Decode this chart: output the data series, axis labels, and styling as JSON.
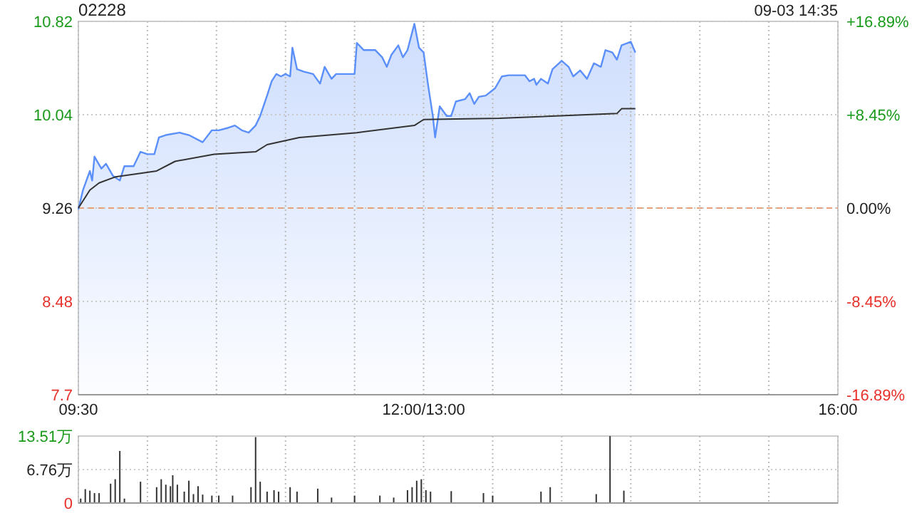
{
  "chart_data": [
    {
      "type": "area",
      "title": "02228",
      "annotations": [
        "09-03 14:35"
      ],
      "categories": [
        "09:30",
        null,
        null,
        null,
        null,
        null,
        null,
        null,
        null,
        null,
        null,
        null,
        null,
        null,
        null,
        null,
        null,
        null,
        null,
        null,
        null,
        null,
        null,
        null,
        null,
        null,
        null,
        null,
        null,
        null,
        null,
        null,
        null,
        null,
        null,
        null,
        null,
        null,
        null,
        null,
        null,
        null,
        null,
        null,
        null,
        null,
        null,
        null,
        null,
        null,
        null,
        null,
        null,
        null,
        null,
        null,
        null,
        null,
        null,
        null,
        null,
        null,
        null,
        null,
        null,
        null,
        null,
        null,
        null,
        null,
        null,
        null,
        null,
        null,
        null,
        null,
        null,
        null,
        null,
        null,
        null,
        null,
        null,
        null,
        null,
        null,
        null,
        null,
        null,
        null,
        null,
        null,
        null,
        null,
        null,
        null,
        null,
        null,
        null,
        null,
        null,
        null,
        null,
        null,
        null,
        null,
        null,
        null,
        null,
        null,
        null,
        null,
        null,
        null,
        null,
        null,
        null,
        null,
        null,
        null,
        null,
        null,
        null,
        null,
        null,
        null,
        null,
        null,
        null,
        null,
        null,
        null,
        null,
        null,
        null,
        null,
        null,
        null,
        null,
        null,
        null,
        null,
        null,
        null,
        null,
        null,
        null,
        null,
        null,
        null,
        "12:00/13:00",
        null,
        null,
        null,
        null,
        null,
        null,
        null,
        null,
        null,
        null,
        null,
        null,
        null,
        null,
        null,
        null,
        null,
        null,
        null,
        null,
        null,
        null,
        null,
        null,
        null,
        null,
        null,
        null,
        null,
        null,
        null,
        null,
        null,
        null,
        null,
        null,
        null,
        null,
        null,
        null,
        null,
        null,
        null,
        null,
        null,
        null,
        null,
        null,
        null,
        null,
        null,
        null,
        null,
        null,
        null,
        null,
        null,
        null,
        null,
        null,
        null,
        null,
        null,
        null,
        null,
        null,
        null,
        null,
        null,
        null,
        null,
        null,
        null,
        null,
        null,
        null,
        null,
        null,
        null,
        null,
        null,
        null,
        null,
        null,
        null,
        null,
        null,
        null,
        null,
        null,
        null,
        null,
        null,
        null,
        null,
        null,
        null,
        null,
        null,
        null,
        null,
        null,
        null,
        null,
        null,
        null,
        null,
        null,
        null,
        null,
        null,
        null,
        null,
        null,
        null,
        null,
        null,
        null,
        null,
        null,
        null,
        null,
        null,
        null,
        null,
        null,
        null,
        null,
        null,
        null,
        null,
        null,
        null,
        null,
        null,
        null,
        null,
        null,
        null,
        null,
        null,
        null,
        null,
        null,
        null,
        null,
        null,
        null,
        null,
        null,
        null,
        null,
        null,
        null,
        null,
        null,
        null,
        null,
        null,
        null,
        null,
        null,
        null,
        null,
        null,
        null,
        null,
        null,
        null,
        null,
        null,
        null,
        null,
        null,
        null,
        null,
        null,
        null,
        null,
        "16:00"
      ],
      "ylim": [
        7.7,
        10.82
      ],
      "yticks": [
        7.7,
        8.48,
        9.26,
        10.04,
        10.82
      ],
      "y2lim": [
        -16.89,
        16.89
      ],
      "y2ticks": [
        {
          "value": -16.89,
          "label": "-16.89%"
        },
        {
          "value": -8.45,
          "label": "-8.45%"
        },
        {
          "value": 0,
          "label": "0.00%"
        },
        {
          "value": 8.45,
          "label": "+8.45%"
        },
        {
          "value": 16.89,
          "label": "+16.89%"
        }
      ],
      "grid": true,
      "ref_lines": [
        {
          "axis": "y",
          "value": 9.26,
          "color": "#e8a07a",
          "line_style": "dashed"
        }
      ],
      "series": [
        {
          "color": "#5b8ff9",
          "values": [
            9.25,
            null,
            9.41,
            null,
            null,
            9.57,
            9.49,
            9.69,
            null,
            null,
            9.59,
            null,
            9.63,
            null,
            null,
            9.53,
            null,
            null,
            9.49,
            null,
            9.61,
            null,
            null,
            null,
            9.61,
            null,
            null,
            9.73,
            null,
            null,
            9.71,
            null,
            null,
            9.71,
            null,
            9.85,
            null,
            null,
            9.87,
            null,
            null,
            null,
            null,
            null,
            9.89,
            null,
            null,
            null,
            9.87,
            null,
            null,
            null,
            null,
            null,
            9.81,
            null,
            null,
            null,
            9.91,
            null,
            null,
            9.91,
            null,
            null,
            null,
            9.93,
            null,
            null,
            9.95,
            null,
            null,
            9.91,
            null,
            null,
            9.89,
            null,
            null,
            9.95,
            null,
            10.03,
            null,
            null,
            10.2,
            null,
            10.32,
            null,
            10.38,
            null,
            10.36,
            null,
            10.38,
            null,
            10.36,
            10.6,
            null,
            10.42,
            null,
            null,
            10.4,
            null,
            null,
            null,
            10.38,
            null,
            null,
            10.3,
            null,
            10.44,
            null,
            null,
            10.34,
            null,
            10.38,
            null,
            null,
            null,
            null,
            10.38,
            null,
            null,
            10.38,
            10.64,
            null,
            null,
            10.58,
            null,
            null,
            null,
            null,
            10.58,
            null,
            null,
            10.52,
            null,
            10.44,
            null,
            10.54,
            null,
            null,
            10.62,
            null,
            10.52,
            null,
            10.58,
            null,
            null,
            10.8,
            null,
            10.6,
            null,
            10.56,
            null,
            10.28,
            null,
            10.03,
            9.85,
            null,
            10.11,
            null,
            null,
            10.03,
            null,
            10.03,
            null,
            10.15,
            null,
            null,
            null,
            10.17,
            null,
            10.22,
            null,
            10.13,
            null,
            10.19,
            null,
            null,
            10.2,
            null,
            null,
            null,
            10.26,
            null,
            null,
            10.36,
            null,
            null,
            10.37,
            null,
            null,
            null,
            null,
            null,
            null,
            10.37,
            null,
            10.32,
            null,
            10.34,
            10.29,
            null,
            10.34,
            null,
            null,
            10.3,
            null,
            10.42,
            null,
            null,
            null,
            10.49,
            null,
            null,
            10.44,
            null,
            10.36,
            null,
            null,
            10.41,
            null,
            null,
            10.34,
            null,
            null,
            10.47,
            null,
            null,
            10.44,
            null,
            10.58,
            null,
            null,
            10.56,
            null,
            10.5,
            null,
            10.62,
            null,
            null,
            null,
            10.65,
            null,
            10.56,
            null,
            null,
            null,
            null,
            null,
            null,
            null,
            null,
            null,
            null,
            null,
            null,
            null,
            null,
            null,
            null,
            null,
            null,
            null,
            null,
            null,
            null,
            null,
            null,
            null,
            null,
            null,
            null,
            null,
            null,
            null,
            null,
            null,
            null,
            null,
            null,
            null,
            null,
            null,
            null,
            null,
            null,
            null,
            null,
            null,
            null,
            null,
            null,
            null,
            null,
            null,
            null,
            null,
            null,
            null,
            null,
            null,
            null,
            null,
            null,
            null,
            null,
            null,
            null,
            null,
            null,
            null,
            null,
            null,
            null,
            null,
            null,
            null,
            null,
            null,
            null,
            null,
            null,
            null,
            null,
            null,
            null,
            null,
            null,
            null,
            null,
            null,
            null
          ]
        },
        {
          "type": "line",
          "color": "#333333",
          "values": [
            9.26,
            null,
            null,
            null,
            null,
            9.41,
            null,
            null,
            null,
            9.47,
            null,
            null,
            null,
            null,
            null,
            null,
            9.52,
            null,
            null,
            null,
            null,
            null,
            null,
            null,
            null,
            null,
            null,
            9.55,
            null,
            null,
            null,
            null,
            null,
            null,
            9.57,
            null,
            null,
            null,
            null,
            null,
            null,
            null,
            9.65,
            null,
            null,
            null,
            null,
            null,
            null,
            null,
            null,
            null,
            null,
            null,
            null,
            null,
            null,
            null,
            null,
            9.71,
            null,
            null,
            null,
            null,
            null,
            null,
            null,
            null,
            null,
            null,
            null,
            null,
            null,
            null,
            null,
            null,
            null,
            9.73,
            null,
            null,
            null,
            null,
            9.79,
            null,
            null,
            null,
            null,
            null,
            null,
            null,
            null,
            null,
            null,
            null,
            null,
            null,
            9.85,
            null,
            null,
            null,
            null,
            null,
            null,
            null,
            null,
            null,
            null,
            null,
            null,
            null,
            null,
            null,
            null,
            null,
            null,
            null,
            null,
            null,
            null,
            null,
            null,
            9.89,
            null,
            null,
            null,
            null,
            null,
            null,
            null,
            null,
            null,
            null,
            null,
            null,
            null,
            null,
            null,
            null,
            null,
            null,
            null,
            null,
            null,
            null,
            null,
            null,
            9.95,
            null,
            null,
            null,
            10.0,
            null,
            null,
            null,
            null,
            null,
            null,
            null,
            null,
            null,
            null,
            null,
            null,
            null,
            null,
            null,
            null,
            null,
            null,
            null,
            null,
            null,
            null,
            null,
            null,
            null,
            null,
            null,
            null,
            null,
            null,
            null,
            null,
            10.01,
            null,
            null,
            null,
            null,
            null,
            null,
            null,
            null,
            null,
            null,
            null,
            null,
            null,
            null,
            null,
            null,
            null,
            null,
            null,
            null,
            null,
            null,
            null,
            null,
            null,
            null,
            null,
            null,
            null,
            null,
            null,
            null,
            null,
            null,
            null,
            null,
            null,
            null,
            null,
            null,
            null,
            null,
            null,
            null,
            null,
            null,
            null,
            null,
            null,
            null,
            10.05,
            null,
            10.09,
            null,
            null,
            null,
            null,
            null,
            10.09,
            null,
            null,
            null,
            null,
            null,
            null,
            null,
            null,
            null,
            null,
            null,
            null,
            null,
            null,
            null,
            null,
            null,
            null,
            null,
            null,
            null,
            null,
            null,
            null,
            null,
            null,
            null,
            null,
            null,
            null,
            null,
            null,
            null,
            null,
            null,
            null,
            null,
            null,
            null,
            null,
            null,
            null,
            null,
            null,
            null,
            null,
            null,
            null,
            null,
            null,
            null,
            null,
            null,
            null,
            null,
            null,
            null,
            null,
            null,
            null,
            null,
            null,
            null,
            null,
            null,
            null,
            null,
            null,
            null,
            null,
            null,
            null,
            null,
            null,
            null,
            null,
            null,
            null,
            null,
            null,
            null,
            null,
            null,
            null,
            null,
            null,
            null,
            null
          ]
        }
      ]
    },
    {
      "type": "bar",
      "categories": [
        null,
        null,
        null,
        null,
        null,
        null,
        null,
        null,
        null,
        null,
        null,
        null,
        null,
        null,
        null,
        null,
        null,
        null,
        null,
        null,
        null,
        null,
        null,
        null,
        null,
        null,
        null,
        null,
        null,
        null,
        null,
        null,
        null,
        null,
        null,
        null,
        null,
        null,
        null,
        null,
        null,
        null,
        null,
        null,
        null,
        null,
        null,
        null,
        null,
        null,
        null,
        null,
        null,
        null,
        null,
        null,
        null,
        null,
        null,
        null,
        null,
        null,
        null,
        null,
        null,
        null,
        null,
        null,
        null,
        null,
        null,
        null,
        null,
        null,
        null,
        null,
        null,
        null,
        null,
        null,
        null,
        null,
        null,
        null,
        null,
        null,
        null,
        null,
        null,
        null,
        null,
        null,
        null,
        null,
        null,
        null,
        null,
        null,
        null,
        null,
        null,
        null,
        null,
        null,
        null,
        null,
        null,
        null,
        null,
        null,
        null,
        null,
        null,
        null,
        null,
        null,
        null,
        null,
        null,
        null,
        null,
        null,
        null,
        null,
        null,
        null,
        null,
        null,
        null,
        null,
        null,
        null,
        null,
        null,
        null,
        null,
        null,
        null,
        null,
        null,
        null,
        null,
        null,
        null,
        null,
        null,
        null,
        null,
        null,
        null,
        null,
        null,
        null,
        null,
        null,
        null,
        null,
        null,
        null,
        null,
        null,
        null,
        null,
        null,
        null,
        null,
        null,
        null,
        null,
        null,
        null,
        null,
        null,
        null,
        null,
        null,
        null,
        null,
        null,
        null,
        null,
        null,
        null,
        null,
        null,
        null,
        null,
        null,
        null,
        null,
        null,
        null,
        null,
        null,
        null,
        null,
        null,
        null,
        null,
        null,
        null,
        null,
        null,
        null,
        null,
        null,
        null,
        null,
        null,
        null,
        null,
        null,
        null,
        null,
        null,
        null,
        null,
        null,
        null,
        null,
        null,
        null,
        null,
        null,
        null,
        null,
        null,
        null,
        null,
        null,
        null,
        null,
        null,
        null,
        null,
        null,
        null,
        null,
        null,
        null,
        null,
        null,
        null,
        null,
        null,
        null,
        null,
        null,
        null,
        null,
        null,
        null,
        null,
        null,
        null,
        null,
        null,
        null,
        null,
        null,
        null,
        null,
        null,
        null,
        null,
        null,
        null,
        null,
        null,
        null,
        null,
        null,
        null,
        null,
        null,
        null,
        null,
        null,
        null,
        null,
        null,
        null,
        null,
        null,
        null,
        null,
        null,
        null,
        null,
        null,
        null,
        null,
        null,
        null,
        null,
        null,
        null,
        null,
        null,
        null,
        null,
        null,
        null,
        null,
        null,
        null,
        null,
        null,
        null,
        null,
        null,
        null,
        null,
        null,
        null,
        null,
        null,
        null,
        null,
        null,
        null,
        null,
        null,
        null,
        null,
        null,
        null,
        null,
        null,
        null,
        null
      ],
      "ylim": [
        0,
        13.51
      ],
      "yticks": [
        {
          "value": 0,
          "label": "0"
        },
        {
          "value": 6.76,
          "label": "6.76万"
        },
        {
          "value": 13.51,
          "label": "13.51万"
        }
      ],
      "tick_labels": "y",
      "grid": "x",
      "ref_lines": [
        {
          "axis": "y",
          "value": 6.76,
          "color": "#cccccc",
          "line_style": "dotted"
        }
      ],
      "series": [
        {
          "color": "#333333",
          "values": [
            null,
            0.9,
            null,
            2.8,
            null,
            2.5,
            null,
            2.0,
            null,
            2.0,
            null,
            null,
            null,
            null,
            3.9,
            null,
            4.8,
            null,
            10.5,
            null,
            0.9,
            null,
            null,
            null,
            null,
            null,
            null,
            4.3,
            null,
            null,
            null,
            null,
            null,
            null,
            3.2,
            null,
            4.8,
            null,
            3.7,
            null,
            3.4,
            5.6,
            null,
            3.7,
            null,
            null,
            2.3,
            null,
            4.5,
            null,
            1.8,
            null,
            3.4,
            null,
            1.7,
            null,
            null,
            null,
            1.5,
            null,
            null,
            1.5,
            null,
            null,
            null,
            null,
            null,
            1.5,
            null,
            null,
            null,
            null,
            null,
            null,
            null,
            3.2,
            null,
            13.3,
            null,
            4.3,
            null,
            null,
            2.3,
            null,
            null,
            2.6,
            null,
            2.3,
            null,
            null,
            null,
            null,
            3.2,
            null,
            null,
            2.3,
            null,
            null,
            null,
            null,
            null,
            null,
            null,
            null,
            2.9,
            null,
            null,
            null,
            null,
            null,
            1.1,
            null,
            null,
            null,
            null,
            null,
            null,
            null,
            null,
            null,
            1.5,
            null,
            null,
            null,
            null,
            null,
            null,
            null,
            null,
            null,
            null,
            1.5,
            null,
            null,
            null,
            null,
            null,
            1.1,
            null,
            null,
            null,
            null,
            null,
            2.6,
            null,
            3.2,
            null,
            4.5,
            null,
            4.8,
            null,
            2.6,
            null,
            2.3,
            null,
            null,
            null,
            null,
            null,
            null,
            null,
            null,
            2.4,
            null,
            null,
            null,
            null,
            null,
            null,
            null,
            null,
            null,
            null,
            null,
            null,
            null,
            2.0,
            null,
            null,
            null,
            1.5,
            null,
            null,
            null,
            null,
            null,
            null,
            null,
            null,
            null,
            null,
            null,
            null,
            null,
            null,
            null,
            null,
            null,
            null,
            null,
            null,
            2.3,
            null,
            null,
            null,
            3.2,
            null,
            null,
            null,
            null,
            null,
            null,
            null,
            null,
            null,
            null,
            null,
            null,
            null,
            null,
            null,
            null,
            null,
            null,
            null,
            1.8,
            null,
            null,
            null,
            null,
            null,
            13.5,
            null,
            null,
            null,
            null,
            null,
            2.5,
            null,
            null,
            null,
            null,
            null,
            null,
            null,
            null,
            null,
            null,
            null,
            null,
            null,
            null,
            null,
            null,
            null,
            null,
            null,
            null,
            null,
            null,
            null,
            null,
            null,
            null,
            null,
            null,
            null,
            null,
            null,
            null,
            null,
            null,
            null,
            null,
            null,
            null,
            null,
            null,
            null,
            null,
            null,
            null,
            null,
            null,
            null,
            null,
            null,
            null,
            null,
            null,
            null,
            null,
            null,
            null,
            null,
            null,
            null,
            null,
            null,
            null,
            null,
            null,
            null,
            null,
            null,
            null,
            null,
            null,
            null,
            null,
            null,
            null,
            null,
            null,
            null,
            null,
            null,
            null,
            null,
            null,
            null,
            null,
            null,
            null,
            null,
            null,
            null,
            null,
            null,
            null,
            null
          ]
        }
      ]
    }
  ]
}
